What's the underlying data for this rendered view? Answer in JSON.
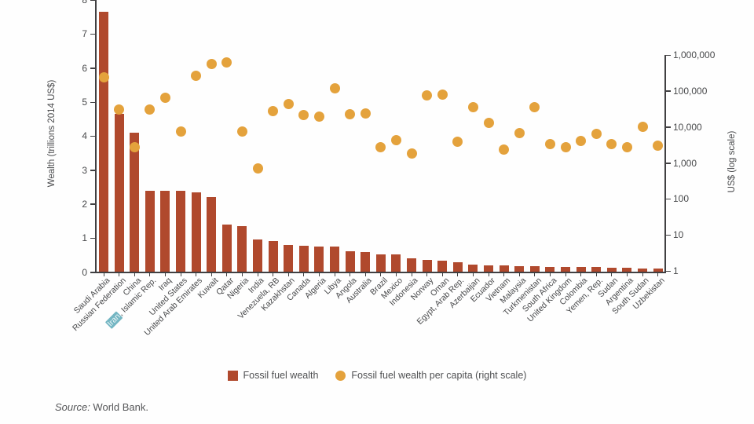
{
  "chart_data": {
    "type": "bar",
    "subtype": "combo bar + scatter (dual axis)",
    "title": "",
    "categories": [
      "Saudi Arabia",
      "Russian Federation",
      "China",
      "Iran, Islamic Rep.",
      "Iraq",
      "United States",
      "United Arab Emirates",
      "Kuwait",
      "Qatar",
      "Nigeria",
      "India",
      "Venezuela, RB",
      "Kazakhstan",
      "Canada",
      "Algeria",
      "Libya",
      "Angola",
      "Australia",
      "Brazil",
      "Mexico",
      "Indonesia",
      "Norway",
      "Oman",
      "Egypt, Arab Rep.",
      "Azerbaijan",
      "Ecuador",
      "Vietnam",
      "Malaysia",
      "Turkmenistan",
      "South Africa",
      "United Kingdom",
      "Colombia",
      "Yemen, Rep.",
      "Sudan",
      "Argentina",
      "South Sudan",
      "Uzbekistan"
    ],
    "series": [
      {
        "name": "Fossil fuel wealth",
        "type": "bar",
        "axis": "left",
        "units": "trillions 2014 US$",
        "values": [
          7.65,
          4.65,
          4.1,
          2.4,
          2.4,
          2.4,
          2.35,
          2.2,
          1.4,
          1.36,
          0.95,
          0.92,
          0.8,
          0.78,
          0.75,
          0.75,
          0.61,
          0.59,
          0.51,
          0.51,
          0.4,
          0.36,
          0.33,
          0.28,
          0.21,
          0.2,
          0.19,
          0.18,
          0.17,
          0.16,
          0.15,
          0.15,
          0.14,
          0.13,
          0.12,
          0.11,
          0.1
        ]
      },
      {
        "name": "Fossil fuel wealth per capita (right scale)",
        "type": "scatter",
        "axis": "right",
        "units": "US$",
        "values": [
          245000,
          31000,
          2800,
          31000,
          65000,
          7400,
          260000,
          550000,
          620000,
          7300,
          690,
          28000,
          44000,
          21000,
          19000,
          121000,
          22000,
          24000,
          2800,
          4200,
          1800,
          74000,
          78000,
          3900,
          35000,
          13300,
          2300,
          6600,
          35000,
          3300,
          2800,
          4000,
          6300,
          3300,
          2800,
          9900,
          3000
        ]
      }
    ],
    "y_left": {
      "title": "Wealth (trillions 2014 US$)",
      "min": 0,
      "max": 8,
      "tick_labels": [
        "0",
        "1",
        "2",
        "3",
        "4",
        "5",
        "6",
        "7",
        "8"
      ]
    },
    "y_right": {
      "title": "US$ (log scale)",
      "scale": "log",
      "min": 1,
      "max": 1000000,
      "tick_labels": [
        "1",
        "10",
        "100",
        "1,000",
        "10,000",
        "100,000",
        "1,000,000"
      ]
    },
    "highlighted_text": "Iran",
    "grid": "off",
    "legend_position": "bottom-center",
    "colors": {
      "bar": "#b0492d",
      "dot": "#e4a23c",
      "axis": "#414042",
      "highlight_bg": "#74b6c3",
      "highlight_text": "#eef7f8"
    }
  },
  "legend": {
    "items": [
      {
        "label": "Fossil fuel wealth",
        "marker": "square"
      },
      {
        "label": "Fossil fuel wealth per capita (right scale)",
        "marker": "circle"
      }
    ]
  },
  "source": {
    "prefix": "Source:",
    "text": " World Bank."
  }
}
